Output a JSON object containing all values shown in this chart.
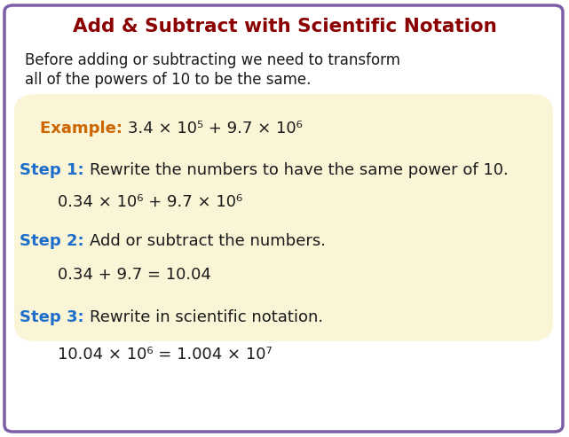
{
  "title": "Add & Subtract with Scientific Notation",
  "title_color": "#8B0000",
  "bg_color": "#ffffff",
  "box_color": "#FAF5D7",
  "outer_border_color": "#7B5EA7",
  "intro_line1": "Before adding or subtracting we need to transform",
  "intro_line2": "all of the powers of 10 to be the same.",
  "intro_color": "#1a1a1a",
  "example_label": "Example: ",
  "example_label_color": "#CC6600",
  "example_math": "3.4 × 10⁵ + 9.7 × 10⁶",
  "step1_label": "Step 1: ",
  "step1_label_color": "#1E6FCC",
  "step1_text": "Rewrite the numbers to have the same power of 10.",
  "step1_math": "0.34 × 10⁶ + 9.7 × 10⁶",
  "step2_label": "Step 2: ",
  "step2_label_color": "#1E6FCC",
  "step2_text": "Add or subtract the numbers.",
  "step2_math": "0.34 + 9.7 = 10.04",
  "step3_label": "Step 3: ",
  "step3_label_color": "#1E6FCC",
  "step3_text": "Rewrite in scientific notation.",
  "step3_math": "10.04 × 10⁶ = 1.004 × 10⁷",
  "math_color": "#1a1a1a",
  "step_text_color": "#1a1a1a",
  "figsize": [
    6.41,
    4.93
  ],
  "dpi": 100
}
